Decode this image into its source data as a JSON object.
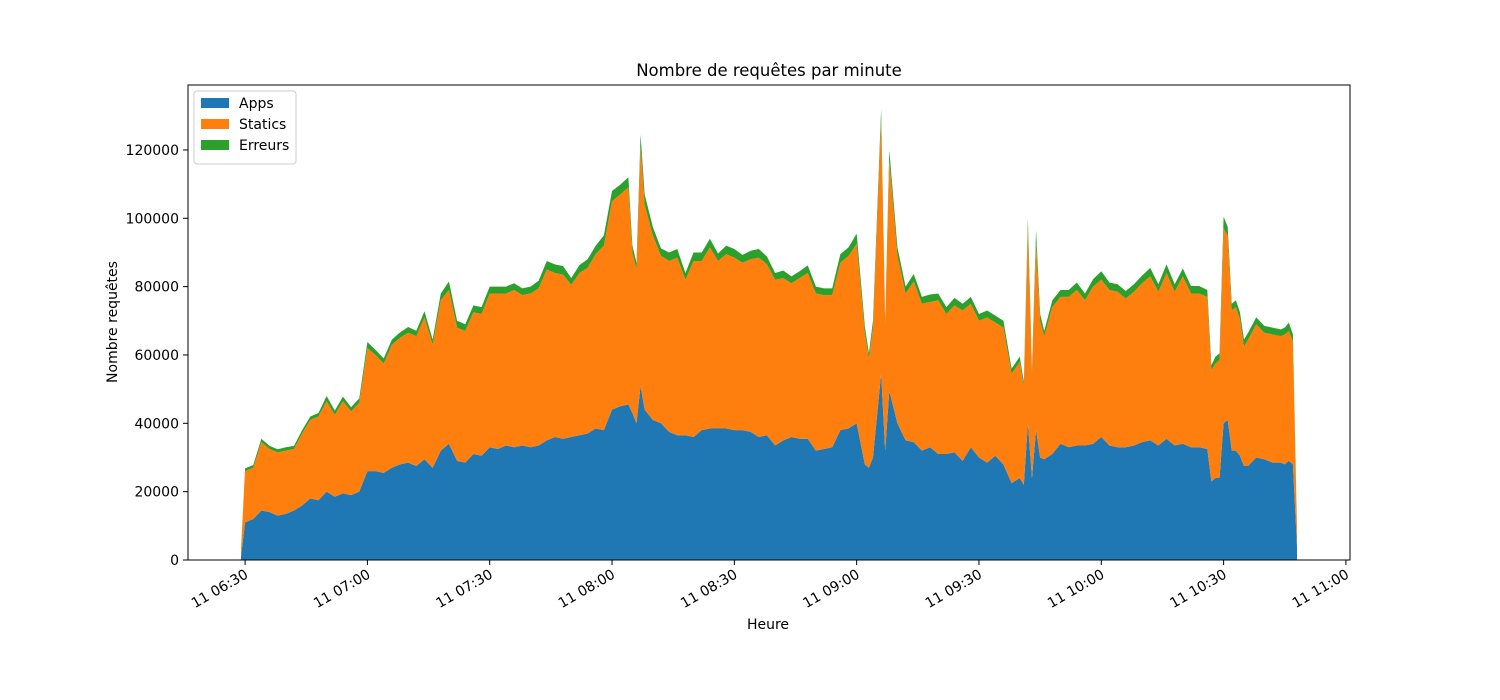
{
  "chart_data": {
    "type": "stacked_area",
    "title": "Nombre de requêtes par minute",
    "xlabel": "Heure",
    "ylabel": "Nombre requêtes",
    "legend": "upper left",
    "x": [
      "11 06:29",
      "11 06:30",
      "11 06:32",
      "11 06:34",
      "11 06:36",
      "11 06:38",
      "11 06:40",
      "11 06:42",
      "11 06:44",
      "11 06:46",
      "11 06:48",
      "11 06:50",
      "11 06:52",
      "11 06:54",
      "11 06:56",
      "11 06:58",
      "11 07:00",
      "11 07:02",
      "11 07:04",
      "11 07:06",
      "11 07:08",
      "11 07:10",
      "11 07:12",
      "11 07:14",
      "11 07:16",
      "11 07:18",
      "11 07:20",
      "11 07:22",
      "11 07:24",
      "11 07:26",
      "11 07:28",
      "11 07:30",
      "11 07:32",
      "11 07:34",
      "11 07:36",
      "11 07:38",
      "11 07:40",
      "11 07:42",
      "11 07:44",
      "11 07:46",
      "11 07:48",
      "11 07:50",
      "11 07:52",
      "11 07:54",
      "11 07:56",
      "11 07:58",
      "11 08:00",
      "11 08:02",
      "11 08:04",
      "11 08:05",
      "11 08:06",
      "11 08:07",
      "11 08:08",
      "11 08:10",
      "11 08:12",
      "11 08:14",
      "11 08:16",
      "11 08:18",
      "11 08:20",
      "11 08:22",
      "11 08:24",
      "11 08:26",
      "11 08:28",
      "11 08:30",
      "11 08:32",
      "11 08:34",
      "11 08:36",
      "11 08:38",
      "11 08:40",
      "11 08:42",
      "11 08:44",
      "11 08:46",
      "11 08:48",
      "11 08:50",
      "11 08:52",
      "11 08:54",
      "11 08:56",
      "11 08:58",
      "11 09:00",
      "11 09:02",
      "11 09:03",
      "11 09:04",
      "11 09:06",
      "11 09:07",
      "11 09:08",
      "11 09:10",
      "11 09:12",
      "11 09:14",
      "11 09:16",
      "11 09:18",
      "11 09:20",
      "11 09:22",
      "11 09:24",
      "11 09:26",
      "11 09:28",
      "11 09:30",
      "11 09:32",
      "11 09:34",
      "11 09:36",
      "11 09:38",
      "11 09:40",
      "11 09:41",
      "11 09:42",
      "11 09:43",
      "11 09:44",
      "11 09:45",
      "11 09:46",
      "11 09:48",
      "11 09:50",
      "11 09:52",
      "11 09:54",
      "11 09:56",
      "11 09:58",
      "11 10:00",
      "11 10:02",
      "11 10:04",
      "11 10:06",
      "11 10:08",
      "11 10:10",
      "11 10:12",
      "11 10:14",
      "11 10:16",
      "11 10:18",
      "11 10:20",
      "11 10:22",
      "11 10:24",
      "11 10:26",
      "11 10:27",
      "11 10:28",
      "11 10:29",
      "11 10:30",
      "11 10:31",
      "11 10:32",
      "11 10:33",
      "11 10:34",
      "11 10:35",
      "11 10:36",
      "11 10:38",
      "11 10:40",
      "11 10:42",
      "11 10:44",
      "11 10:45",
      "11 10:46",
      "11 10:47",
      "11 10:48"
    ],
    "series": [
      {
        "name": "Apps",
        "color": "#1f77b4",
        "values": [
          1000,
          11000,
          12000,
          14500,
          14000,
          13000,
          13500,
          14500,
          16000,
          18000,
          17500,
          20000,
          18500,
          19500,
          19000,
          20000,
          26000,
          26000,
          25500,
          27000,
          28000,
          28500,
          27500,
          29500,
          27000,
          32000,
          34000,
          29000,
          28500,
          31000,
          30500,
          33000,
          32500,
          33500,
          33000,
          33500,
          33000,
          33500,
          35000,
          36000,
          35500,
          36000,
          36500,
          37000,
          38500,
          38000,
          44000,
          45000,
          45500,
          43000,
          40000,
          51000,
          44000,
          41000,
          40000,
          37500,
          36500,
          36500,
          36000,
          38000,
          38500,
          38500,
          38500,
          38000,
          38000,
          37500,
          36000,
          36500,
          33500,
          35000,
          36000,
          35500,
          35500,
          32000,
          32500,
          33000,
          38000,
          38500,
          40000,
          28000,
          27000,
          30000,
          54500,
          32000,
          49500,
          40000,
          35000,
          34500,
          32000,
          33000,
          31000,
          31000,
          31500,
          29000,
          33000,
          30000,
          28500,
          30500,
          28000,
          22500,
          24000,
          22000,
          40000,
          24000,
          38000,
          30000,
          29500,
          31000,
          34000,
          33000,
          33500,
          33500,
          34000,
          36000,
          33500,
          33000,
          33000,
          33500,
          34500,
          35000,
          33500,
          35500,
          33500,
          34000,
          33000,
          33000,
          32500,
          23000,
          24000,
          24000,
          40000,
          41000,
          32000,
          32000,
          30500,
          27500,
          27500,
          30000,
          29500,
          28500,
          28500,
          28000,
          29000,
          28000,
          4000
        ]
      },
      {
        "name": "Statics",
        "color": "#ff7f0e",
        "values": [
          2000,
          15000,
          15000,
          20000,
          18500,
          18500,
          18500,
          18000,
          21000,
          23000,
          24500,
          26500,
          24000,
          27000,
          24500,
          26000,
          36000,
          34000,
          32000,
          36000,
          37000,
          38000,
          38000,
          41500,
          36000,
          44000,
          45000,
          39000,
          38500,
          41500,
          41500,
          45000,
          45500,
          44500,
          46000,
          44000,
          45000,
          46000,
          50000,
          48000,
          48000,
          44500,
          47500,
          48500,
          51000,
          54000,
          61000,
          62000,
          63500,
          47000,
          45000,
          70000,
          60000,
          54000,
          49000,
          50000,
          52000,
          45500,
          51500,
          49500,
          53000,
          49000,
          51000,
          50500,
          49000,
          50500,
          52500,
          50000,
          48500,
          47500,
          45000,
          47000,
          48500,
          46000,
          45000,
          44500,
          49000,
          50500,
          52500,
          38500,
          32000,
          38000,
          74500,
          37000,
          67500,
          49000,
          43000,
          47000,
          43000,
          42500,
          45000,
          41000,
          43000,
          44000,
          42000,
          40000,
          42500,
          39000,
          40000,
          32000,
          34000,
          29000,
          57000,
          30500,
          55000,
          40000,
          36000,
          43000,
          43000,
          44000,
          45500,
          42500,
          46000,
          46000,
          45500,
          45500,
          43500,
          45000,
          46500,
          48000,
          45000,
          48500,
          45000,
          49000,
          45000,
          45000,
          44500,
          32500,
          33500,
          34500,
          57000,
          54000,
          41000,
          42000,
          40000,
          35000,
          37000,
          39000,
          37000,
          37500,
          37000,
          38000,
          38000,
          36000,
          5000
        ]
      },
      {
        "name": "Erreurs",
        "color": "#2ca02c",
        "values": [
          200,
          800,
          800,
          1000,
          900,
          900,
          1000,
          900,
          1000,
          1000,
          1000,
          1500,
          1200,
          1300,
          1200,
          1300,
          1800,
          1500,
          1500,
          1500,
          1600,
          1700,
          1600,
          1800,
          1500,
          2000,
          2500,
          2000,
          2000,
          2000,
          2000,
          2000,
          2000,
          2000,
          2000,
          2000,
          2000,
          2200,
          2500,
          2500,
          2500,
          2000,
          2300,
          2500,
          2500,
          3000,
          3000,
          2800,
          3000,
          2000,
          2000,
          3500,
          3000,
          2500,
          2200,
          2500,
          2500,
          2000,
          2500,
          2500,
          2500,
          2200,
          2500,
          2500,
          2300,
          2500,
          2500,
          2300,
          2000,
          2200,
          2000,
          2000,
          2200,
          2000,
          2000,
          2000,
          2500,
          2500,
          3000,
          2000,
          1500,
          2000,
          3000,
          1500,
          3000,
          2500,
          2000,
          2200,
          2000,
          2200,
          2000,
          2000,
          2200,
          2000,
          2000,
          2000,
          2000,
          2000,
          2000,
          1500,
          1500,
          1200,
          3000,
          1500,
          3500,
          2000,
          1500,
          2000,
          2000,
          2000,
          2200,
          2000,
          2200,
          2500,
          2200,
          2200,
          2200,
          2200,
          2200,
          2500,
          2200,
          2500,
          2200,
          2300,
          2200,
          2200,
          2000,
          1500,
          2000,
          2000,
          3500,
          2500,
          2000,
          2000,
          2000,
          2000,
          2000,
          2000,
          2000,
          2000,
          2000,
          2000,
          2500,
          2000,
          500
        ]
      }
    ],
    "xlim": [
      "11 06:16",
      "11 11:01"
    ],
    "xticks": [
      "11 06:30",
      "11 07:00",
      "11 07:30",
      "11 08:00",
      "11 08:30",
      "11 09:00",
      "11 09:30",
      "11 10:00",
      "11 10:30",
      "11 11:00"
    ],
    "ylim": [
      0,
      139000
    ],
    "yticks": [
      0,
      20000,
      40000,
      60000,
      80000,
      100000,
      120000
    ]
  }
}
